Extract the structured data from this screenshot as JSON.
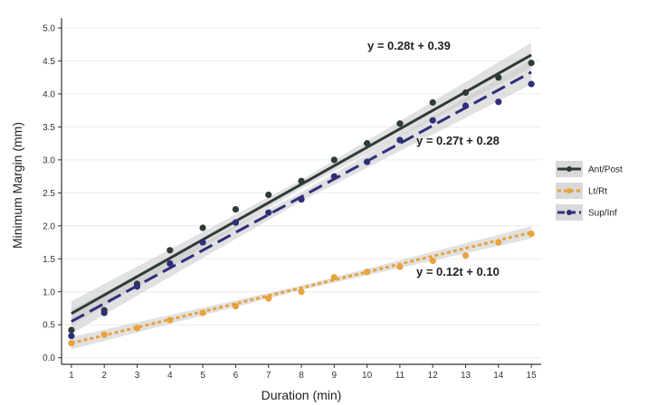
{
  "chart_data": {
    "type": "scatter",
    "title": "",
    "xlabel": "Duration (min)",
    "ylabel": "Minimum Margin (mm)",
    "xlim": [
      0.7,
      15.3
    ],
    "ylim": [
      -0.1,
      5.15
    ],
    "x_ticks": [
      "1",
      "2",
      "3",
      "4",
      "5",
      "6",
      "7",
      "8",
      "9",
      "10",
      "11",
      "12",
      "13",
      "14",
      "15"
    ],
    "y_ticks": [
      "0.0",
      "0.5",
      "1.0",
      "1.5",
      "2.0",
      "2.5",
      "3.0",
      "3.5",
      "4.0",
      "4.5",
      "5.0"
    ],
    "grid": true,
    "legend_position": "right",
    "series": [
      {
        "name": "Ant/Post",
        "color": "#2f3a3a",
        "fit": {
          "slope": 0.28,
          "intercept": 0.39,
          "equation": "y = 0.28t + 0.39",
          "linestyle": "solid"
        },
        "x": [
          1,
          2,
          3,
          4,
          5,
          6,
          7,
          8,
          9,
          10,
          11,
          12,
          13,
          14,
          15
        ],
        "y": [
          0.42,
          0.72,
          1.12,
          1.63,
          1.97,
          2.25,
          2.47,
          2.68,
          3.0,
          3.25,
          3.55,
          3.87,
          4.02,
          4.25,
          4.47
        ]
      },
      {
        "name": "Lt/Rt",
        "color": "#e8a33d",
        "fit": {
          "slope": 0.12,
          "intercept": 0.1,
          "equation": "y = 0.12t + 0.10",
          "linestyle": "dotted"
        },
        "x": [
          1,
          2,
          3,
          4,
          5,
          6,
          7,
          8,
          9,
          10,
          11,
          12,
          13,
          14,
          15
        ],
        "y": [
          0.22,
          0.35,
          0.45,
          0.57,
          0.68,
          0.78,
          0.9,
          1.0,
          1.22,
          1.3,
          1.38,
          1.47,
          1.55,
          1.75,
          1.88
        ]
      },
      {
        "name": "Sup/Inf",
        "color": "#2e2f7a",
        "fit": {
          "slope": 0.27,
          "intercept": 0.28,
          "equation": "y = 0.27t + 0.28",
          "linestyle": "dashed"
        },
        "x": [
          1,
          2,
          3,
          4,
          5,
          6,
          7,
          8,
          9,
          10,
          11,
          12,
          13,
          14,
          15
        ],
        "y": [
          0.33,
          0.68,
          1.08,
          1.43,
          1.75,
          2.05,
          2.2,
          2.4,
          2.75,
          2.97,
          3.3,
          3.6,
          3.82,
          3.88,
          4.15
        ]
      }
    ]
  }
}
